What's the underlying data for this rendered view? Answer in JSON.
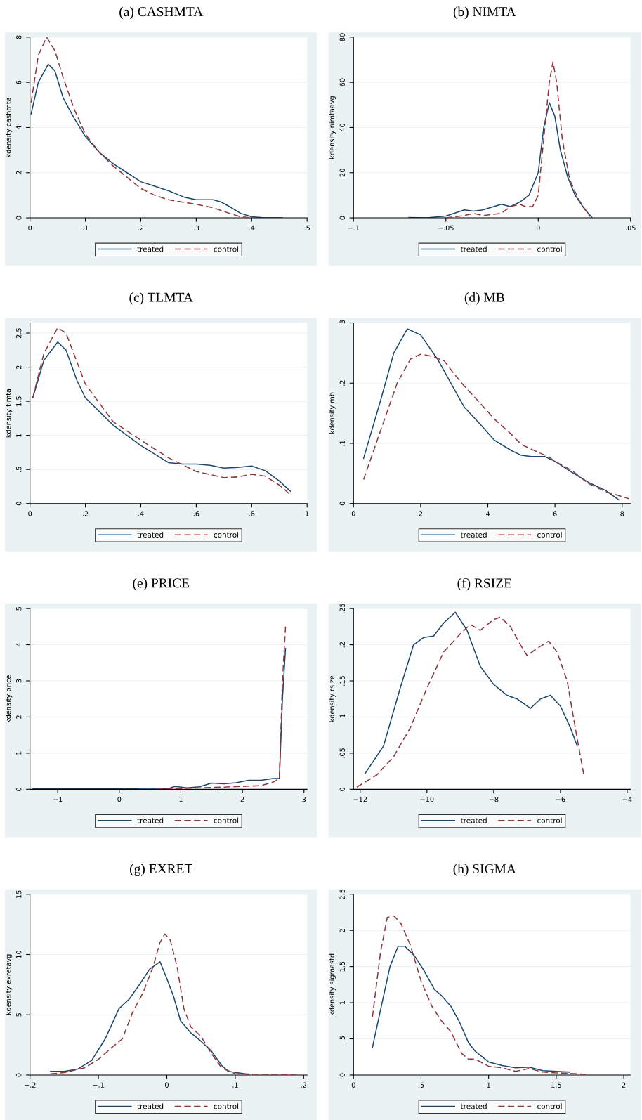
{
  "chart_data": [
    {
      "type": "line",
      "title": "(a) CASHMTA",
      "ylabel": "kdensity cashmta",
      "legend": "bottom",
      "grid": "y",
      "xlim": [
        0,
        0.5
      ],
      "ylim": [
        0,
        8
      ],
      "xticks": [
        0,
        {
          "value": 0.1,
          "label": ".1"
        },
        {
          "value": 0.2,
          "label": ".2"
        },
        {
          "value": 0.3,
          "label": ".3"
        },
        {
          "value": 0.4,
          "label": ".4"
        },
        {
          "value": 0.5,
          "label": ".5"
        }
      ],
      "yticks": [
        0,
        2,
        4,
        6,
        8
      ],
      "series": [
        {
          "name": "treated",
          "color": "#1a476f",
          "line_style": "solid",
          "x": [
            0.002,
            0.015,
            0.033,
            0.045,
            0.06,
            0.08,
            0.1,
            0.125,
            0.15,
            0.175,
            0.2,
            0.225,
            0.25,
            0.28,
            0.3,
            0.33,
            0.345,
            0.36,
            0.38,
            0.4,
            0.42,
            0.455
          ],
          "values": [
            4.6,
            6.0,
            6.8,
            6.5,
            5.3,
            4.4,
            3.6,
            2.9,
            2.4,
            2.0,
            1.6,
            1.4,
            1.2,
            0.9,
            0.8,
            0.8,
            0.7,
            0.5,
            0.2,
            0.05,
            0.01,
            0
          ]
        },
        {
          "name": "control",
          "color": "#90353b",
          "line_style": "dashed",
          "x": [
            0.002,
            0.015,
            0.03,
            0.045,
            0.06,
            0.08,
            0.1,
            0.125,
            0.15,
            0.175,
            0.2,
            0.225,
            0.25,
            0.3,
            0.33,
            0.36,
            0.38,
            0.4
          ],
          "values": [
            5.1,
            7.2,
            8.0,
            7.4,
            6.2,
            4.8,
            3.7,
            2.9,
            2.3,
            1.8,
            1.3,
            1.0,
            0.8,
            0.6,
            0.45,
            0.2,
            0.05,
            0
          ]
        }
      ]
    },
    {
      "type": "line",
      "title": "(b) NIMTA",
      "ylabel": "kdensity nimtaavg",
      "legend": "bottom",
      "grid": "y",
      "xlim": [
        -0.1,
        0.05
      ],
      "ylim": [
        0,
        80
      ],
      "xticks": [
        {
          "value": -0.1,
          "label": "−.1"
        },
        {
          "value": -0.05,
          "label": "−.05"
        },
        0,
        {
          "value": 0.05,
          "label": ".05"
        }
      ],
      "yticks": [
        0,
        20,
        40,
        60,
        80
      ],
      "series": [
        {
          "name": "treated",
          "color": "#1a476f",
          "line_style": "solid",
          "x": [
            -0.07,
            -0.06,
            -0.05,
            -0.04,
            -0.035,
            -0.03,
            -0.02,
            -0.015,
            -0.01,
            -0.005,
            0,
            0.003,
            0.006,
            0.009,
            0.012,
            0.016,
            0.02,
            0.025,
            0.029
          ],
          "values": [
            0.2,
            0,
            0.8,
            3.5,
            3,
            3.5,
            6,
            5,
            7,
            10,
            20,
            40,
            51,
            45,
            30,
            18,
            10,
            4,
            0.3
          ]
        },
        {
          "name": "control",
          "color": "#90353b",
          "line_style": "dashed",
          "x": [
            -0.05,
            -0.04,
            -0.035,
            -0.03,
            -0.02,
            -0.015,
            -0.01,
            -0.007,
            -0.003,
            0,
            0.003,
            0.006,
            0.008,
            0.01,
            0.013,
            0.017,
            0.022,
            0.028
          ],
          "values": [
            0,
            1,
            2,
            1,
            2,
            5,
            6,
            5,
            5,
            10,
            35,
            60,
            69,
            60,
            35,
            17,
            8,
            0.5
          ]
        }
      ]
    },
    {
      "type": "line",
      "title": "(c) TLMTA",
      "ylabel": "kdensity tlmta",
      "legend": "bottom",
      "grid": "y",
      "xlim": [
        0,
        1
      ],
      "ylim": [
        0,
        2.65
      ],
      "xticks": [
        0,
        {
          "value": 0.2,
          "label": ".2"
        },
        {
          "value": 0.4,
          "label": ".4"
        },
        {
          "value": 0.6,
          "label": ".6"
        },
        {
          "value": 0.8,
          "label": ".8"
        },
        1
      ],
      "yticks": [
        0,
        {
          "value": 0.5,
          "label": ".5"
        },
        1,
        1.5,
        2,
        2.5
      ],
      "series": [
        {
          "name": "treated",
          "color": "#1a476f",
          "line_style": "solid",
          "x": [
            0.01,
            0.05,
            0.1,
            0.13,
            0.17,
            0.2,
            0.3,
            0.4,
            0.5,
            0.55,
            0.6,
            0.65,
            0.7,
            0.75,
            0.8,
            0.85,
            0.9,
            0.94
          ],
          "values": [
            1.55,
            2.1,
            2.37,
            2.25,
            1.8,
            1.55,
            1.15,
            0.85,
            0.6,
            0.58,
            0.58,
            0.56,
            0.52,
            0.53,
            0.55,
            0.48,
            0.33,
            0.18
          ]
        },
        {
          "name": "control",
          "color": "#90353b",
          "line_style": "dashed",
          "x": [
            0.01,
            0.05,
            0.1,
            0.13,
            0.2,
            0.3,
            0.4,
            0.5,
            0.6,
            0.7,
            0.75,
            0.8,
            0.85,
            0.9,
            0.94
          ],
          "values": [
            1.55,
            2.2,
            2.58,
            2.5,
            1.75,
            1.2,
            0.93,
            0.67,
            0.47,
            0.38,
            0.39,
            0.43,
            0.4,
            0.27,
            0.13
          ]
        }
      ]
    },
    {
      "type": "line",
      "title": "(d) MB",
      "ylabel": "kdensity mb",
      "legend": "bottom",
      "grid": "y",
      "xlim": [
        0,
        8.25
      ],
      "ylim": [
        0,
        0.3
      ],
      "xticks": [
        0,
        2,
        4,
        6,
        8
      ],
      "yticks": [
        0,
        {
          "value": 0.1,
          "label": ".1"
        },
        {
          "value": 0.2,
          "label": ".2"
        },
        {
          "value": 0.3,
          "label": ".3"
        }
      ],
      "series": [
        {
          "name": "treated",
          "color": "#1a476f",
          "line_style": "solid",
          "x": [
            0.3,
            0.8,
            1.2,
            1.6,
            2,
            2.5,
            3,
            3.3,
            3.8,
            4.2,
            4.7,
            5,
            5.3,
            5.7,
            6,
            6.5,
            7,
            7.5,
            7.9
          ],
          "values": [
            0.075,
            0.17,
            0.25,
            0.29,
            0.28,
            0.24,
            0.19,
            0.16,
            0.13,
            0.105,
            0.088,
            0.08,
            0.078,
            0.078,
            0.07,
            0.052,
            0.035,
            0.022,
            0.006
          ]
        },
        {
          "name": "control",
          "color": "#90353b",
          "line_style": "dashed",
          "x": [
            0.3,
            0.8,
            1.3,
            1.7,
            2,
            2.3,
            2.7,
            3,
            3.3,
            3.8,
            4.2,
            4.7,
            5,
            5.5,
            5.8,
            6,
            6.5,
            7,
            7.5,
            8.2
          ],
          "values": [
            0.04,
            0.12,
            0.2,
            0.24,
            0.248,
            0.245,
            0.237,
            0.215,
            0.195,
            0.165,
            0.14,
            0.115,
            0.098,
            0.085,
            0.078,
            0.07,
            0.055,
            0.033,
            0.02,
            0.008
          ]
        }
      ]
    },
    {
      "type": "line",
      "title": "(e) PRICE",
      "ylabel": "kdensity price",
      "legend": "bottom",
      "grid": "y",
      "xlim": [
        -1.45,
        3.05
      ],
      "ylim": [
        0,
        5
      ],
      "xticks": [
        {
          "value": -1,
          "label": "−1"
        },
        0,
        1,
        2,
        3
      ],
      "yticks": [
        0,
        1,
        2,
        3,
        4,
        5
      ],
      "series": [
        {
          "name": "treated",
          "color": "#1a476f",
          "line_style": "solid",
          "x": [
            -1.4,
            0,
            0.5,
            0.8,
            0.9,
            1.1,
            1.3,
            1.5,
            1.7,
            1.9,
            2.1,
            2.3,
            2.5,
            2.6,
            2.65,
            2.7
          ],
          "values": [
            0.01,
            0.01,
            0.03,
            0.02,
            0.08,
            0.04,
            0.07,
            0.17,
            0.15,
            0.18,
            0.25,
            0.25,
            0.3,
            0.3,
            2.5,
            3.9
          ]
        },
        {
          "name": "control",
          "color": "#90353b",
          "line_style": "dashed",
          "x": [
            0.6,
            1,
            1.5,
            2,
            2.3,
            2.5,
            2.6,
            2.65,
            2.7
          ],
          "values": [
            0,
            0.02,
            0.05,
            0.08,
            0.1,
            0.2,
            0.3,
            3,
            4.5
          ]
        }
      ]
    },
    {
      "type": "line",
      "title": "(f) RSIZE",
      "ylabel": "kdensity rsize",
      "legend": "bottom",
      "grid": "y",
      "xlim": [
        -12.2,
        -3.9
      ],
      "ylim": [
        0,
        0.25
      ],
      "xticks": [
        {
          "value": -12,
          "label": "−12"
        },
        {
          "value": -10,
          "label": "−10"
        },
        {
          "value": -8,
          "label": "−8"
        },
        {
          "value": -6,
          "label": "−6"
        },
        {
          "value": -4,
          "label": "−4"
        }
      ],
      "yticks": [
        0,
        {
          "value": 0.05,
          "label": ".05"
        },
        {
          "value": 0.1,
          "label": ".1"
        },
        {
          "value": 0.15,
          "label": ".15"
        },
        {
          "value": 0.2,
          "label": ".2"
        },
        {
          "value": 0.25,
          "label": ".25"
        }
      ],
      "series": [
        {
          "name": "treated",
          "color": "#1a476f",
          "line_style": "solid",
          "x": [
            -11.85,
            -11.3,
            -10.8,
            -10.4,
            -10.1,
            -9.8,
            -9.5,
            -9.15,
            -8.8,
            -8.4,
            -8,
            -7.6,
            -7.3,
            -6.9,
            -6.6,
            -6.3,
            -6,
            -5.7,
            -5.5
          ],
          "values": [
            0.022,
            0.06,
            0.14,
            0.2,
            0.21,
            0.212,
            0.23,
            0.245,
            0.22,
            0.17,
            0.145,
            0.13,
            0.125,
            0.112,
            0.125,
            0.13,
            0.115,
            0.085,
            0.06
          ]
        },
        {
          "name": "control",
          "color": "#90353b",
          "line_style": "dashed",
          "x": [
            -12.1,
            -11.5,
            -11,
            -10.5,
            -10,
            -9.5,
            -9,
            -8.7,
            -8.4,
            -8,
            -7.8,
            -7.5,
            -7.2,
            -7,
            -6.7,
            -6.35,
            -6.1,
            -5.8,
            -5.5,
            -5.3
          ],
          "values": [
            0.003,
            0.02,
            0.045,
            0.085,
            0.14,
            0.19,
            0.215,
            0.228,
            0.22,
            0.235,
            0.238,
            0.225,
            0.2,
            0.185,
            0.195,
            0.205,
            0.19,
            0.15,
            0.07,
            0.02
          ]
        }
      ]
    },
    {
      "type": "line",
      "title": "(g) EXRET",
      "ylabel": "kdensity exretavg",
      "legend": "bottom",
      "grid": "y",
      "xlim": [
        -0.2,
        0.205
      ],
      "ylim": [
        0,
        15
      ],
      "xticks": [
        {
          "value": -0.2,
          "label": "−.2"
        },
        {
          "value": -0.1,
          "label": "−.1"
        },
        0,
        {
          "value": 0.1,
          "label": ".1"
        },
        {
          "value": 0.2,
          "label": ".2"
        }
      ],
      "yticks": [
        0,
        5,
        10,
        15
      ],
      "series": [
        {
          "name": "treated",
          "color": "#1a476f",
          "line_style": "solid",
          "x": [
            -0.17,
            -0.15,
            -0.13,
            -0.11,
            -0.09,
            -0.07,
            -0.055,
            -0.04,
            -0.025,
            -0.01,
            0,
            0.01,
            0.02,
            0.035,
            0.05,
            0.065,
            0.08,
            0.09,
            0.12
          ],
          "values": [
            0.3,
            0.3,
            0.5,
            1.2,
            3,
            5.5,
            6.3,
            7.5,
            8.8,
            9.4,
            8,
            6.5,
            4.5,
            3.5,
            2.8,
            2,
            0.8,
            0.3,
            0.05
          ]
        },
        {
          "name": "control",
          "color": "#90353b",
          "line_style": "dashed",
          "x": [
            -0.17,
            -0.15,
            -0.12,
            -0.1,
            -0.08,
            -0.065,
            -0.05,
            -0.035,
            -0.02,
            -0.01,
            -0.003,
            0.005,
            0.015,
            0.025,
            0.035,
            0.05,
            0.065,
            0.08,
            0.1,
            0.19
          ],
          "values": [
            0.1,
            0.2,
            0.6,
            1.3,
            2.3,
            3,
            5.2,
            6.8,
            9,
            11,
            11.7,
            11.2,
            9,
            5.5,
            4,
            3.2,
            1.8,
            0.6,
            0.1,
            0
          ]
        }
      ]
    },
    {
      "type": "line",
      "title": "(h) SIGMA",
      "ylabel": "kdensity sigmastd",
      "legend": "bottom",
      "grid": "y",
      "xlim": [
        0,
        2.05
      ],
      "ylim": [
        0,
        2.5
      ],
      "xticks": [
        0,
        {
          "value": 0.5,
          "label": ".5"
        },
        1,
        1.5,
        2
      ],
      "yticks": [
        0,
        {
          "value": 0.5,
          "label": ".5"
        },
        1,
        1.5,
        2,
        2.5
      ],
      "series": [
        {
          "name": "treated",
          "color": "#1a476f",
          "line_style": "solid",
          "x": [
            0.14,
            0.2,
            0.27,
            0.33,
            0.38,
            0.45,
            0.52,
            0.6,
            0.65,
            0.72,
            0.78,
            0.85,
            0.9,
            1,
            1.1,
            1.2,
            1.3,
            1.4,
            1.6
          ],
          "values": [
            0.38,
            0.9,
            1.5,
            1.78,
            1.78,
            1.65,
            1.45,
            1.18,
            1.1,
            0.95,
            0.75,
            0.45,
            0.33,
            0.18,
            0.13,
            0.1,
            0.11,
            0.06,
            0.04
          ]
        },
        {
          "name": "control",
          "color": "#90353b",
          "line_style": "dashed",
          "x": [
            0.14,
            0.2,
            0.25,
            0.3,
            0.35,
            0.42,
            0.5,
            0.58,
            0.65,
            0.72,
            0.8,
            0.85,
            0.9,
            1,
            1.1,
            1.2,
            1.3,
            1.4,
            1.72
          ],
          "values": [
            0.8,
            1.7,
            2.18,
            2.2,
            2.1,
            1.8,
            1.3,
            0.95,
            0.75,
            0.6,
            0.3,
            0.22,
            0.22,
            0.12,
            0.1,
            0.05,
            0.09,
            0.04,
            0.01
          ]
        }
      ]
    }
  ]
}
